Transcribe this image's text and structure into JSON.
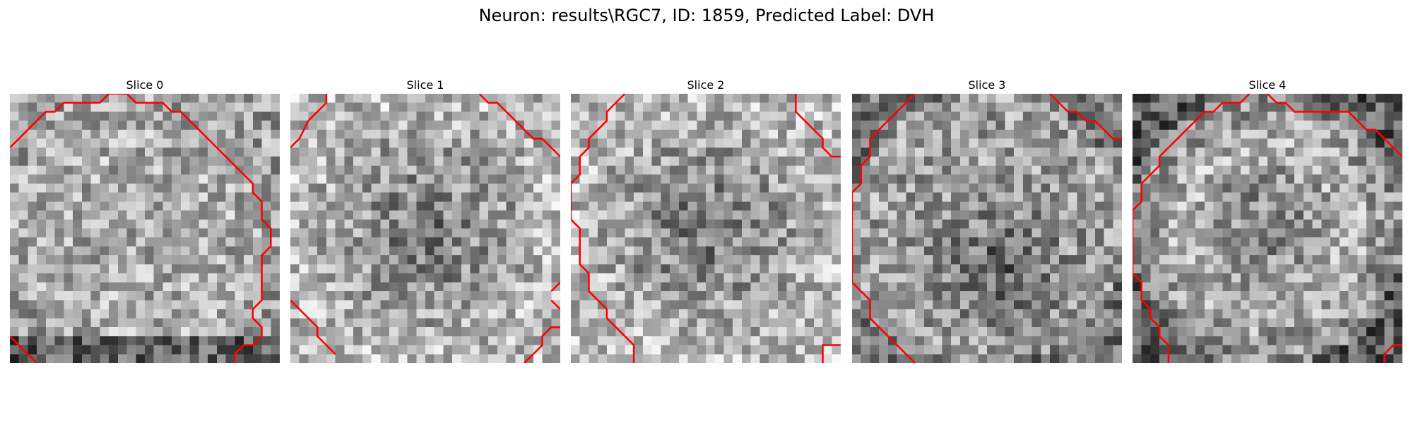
{
  "figure": {
    "title": "Neuron: results\\RGC7, ID: 1859, Predicted Label: DVH",
    "contour_color": "#ff0000",
    "colormap": "gray"
  },
  "slices": [
    {
      "label": "Slice 0",
      "pattern": "bright-center-ring"
    },
    {
      "label": "Slice 1",
      "pattern": "dark-center"
    },
    {
      "label": "Slice 2",
      "pattern": "dark-center"
    },
    {
      "label": "Slice 3",
      "pattern": "dark-lower-center"
    },
    {
      "label": "Slice 4",
      "pattern": "bright-ring"
    }
  ]
}
